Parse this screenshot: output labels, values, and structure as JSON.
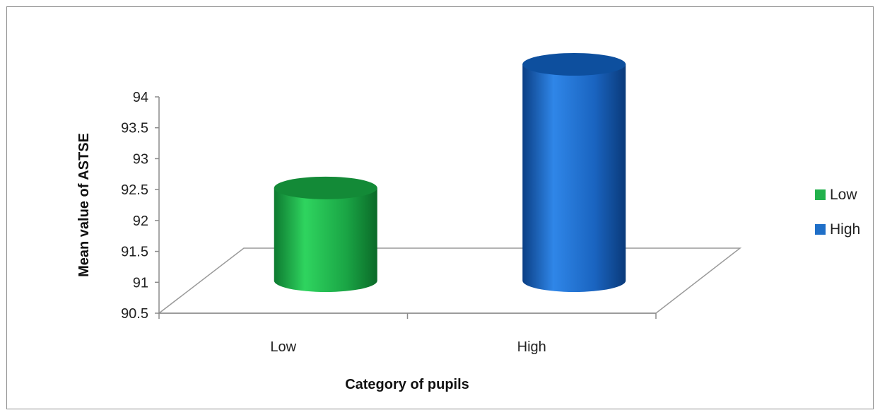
{
  "chart_data": {
    "type": "bar",
    "title": "",
    "xlabel": "Category of pupils",
    "ylabel": "Mean value of ASTSE",
    "categories": [
      "Low",
      "High"
    ],
    "values": [
      92.0,
      94.0
    ],
    "ylim": [
      90.5,
      94
    ],
    "yticks": [
      "90.5",
      "91",
      "91.5",
      "92",
      "92.5",
      "93",
      "93.5",
      "94"
    ],
    "grid": false,
    "legend_position": "right",
    "legend": [
      {
        "label": "Low",
        "color": "#22b14c"
      },
      {
        "label": "High",
        "color": "#1f6fc8"
      }
    ],
    "colors": {
      "low": "#22b14c",
      "high": "#1f6fc8"
    },
    "style": "3d-cylinder"
  }
}
